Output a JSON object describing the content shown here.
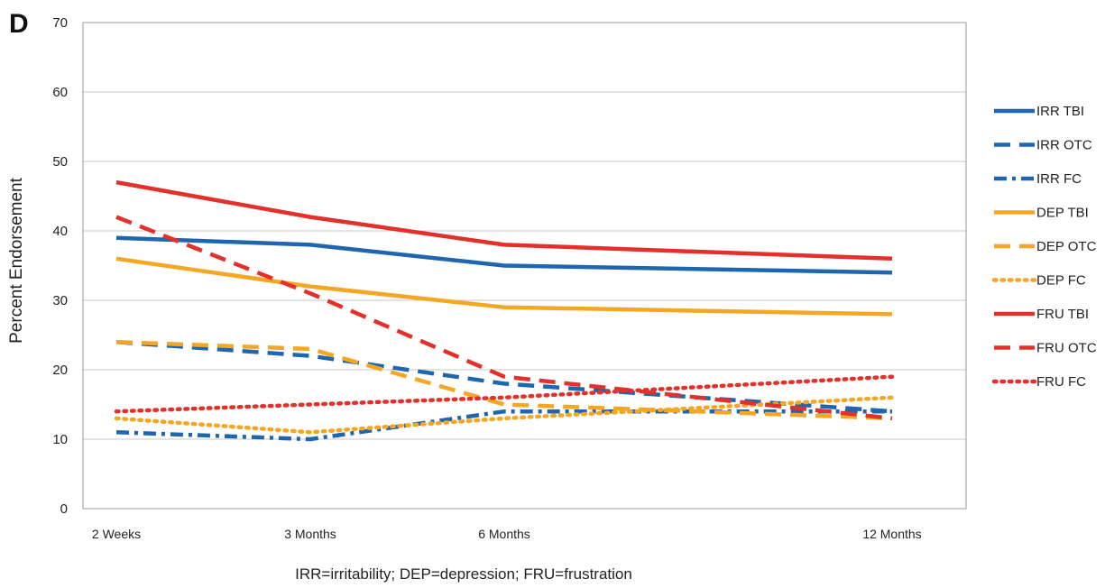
{
  "panel_label": "D",
  "caption": "IRR=irritability; DEP=depression; FRU=frustration",
  "colors": {
    "blue": "#1f66b1",
    "orange": "#f5a623",
    "red": "#e3302b",
    "grid": "#c8c8c8",
    "frame": "#9a9a9a"
  },
  "chart_data": {
    "type": "line",
    "title": "",
    "xlabel": "",
    "ylabel": "Percent Endorsement",
    "x_positions": [
      0,
      3,
      6,
      12
    ],
    "categories": [
      "2 Weeks",
      "3 Months",
      "6 Months",
      "12 Months"
    ],
    "ylim": [
      0,
      70
    ],
    "yticks": [
      0,
      10,
      20,
      30,
      40,
      50,
      60,
      70
    ],
    "grid": true,
    "legend_position": "right",
    "series": [
      {
        "name": "IRR TBI",
        "color": "#1f66b1",
        "style": "solid",
        "values": [
          39,
          38,
          35,
          34
        ]
      },
      {
        "name": "IRR OTC",
        "color": "#1f66b1",
        "style": "dashed",
        "values": [
          24,
          22,
          18,
          14
        ]
      },
      {
        "name": "IRR FC",
        "color": "#1f66b1",
        "style": "dashdot",
        "values": [
          11,
          10,
          14,
          14
        ]
      },
      {
        "name": "DEP TBI",
        "color": "#f5a623",
        "style": "solid",
        "values": [
          36,
          32,
          29,
          28
        ]
      },
      {
        "name": "DEP OTC",
        "color": "#f5a623",
        "style": "dashed",
        "values": [
          24,
          23,
          15,
          13
        ]
      },
      {
        "name": "DEP FC",
        "color": "#f5a623",
        "style": "dotted",
        "values": [
          13,
          11,
          13,
          16
        ]
      },
      {
        "name": "FRU TBI",
        "color": "#e3302b",
        "style": "solid",
        "values": [
          47,
          42,
          38,
          36
        ]
      },
      {
        "name": "FRU OTC",
        "color": "#e3302b",
        "style": "dashed",
        "values": [
          42,
          31,
          19,
          13
        ]
      },
      {
        "name": "FRU FC",
        "color": "#e3302b",
        "style": "dotted",
        "values": [
          14,
          15,
          16,
          19
        ]
      }
    ]
  }
}
